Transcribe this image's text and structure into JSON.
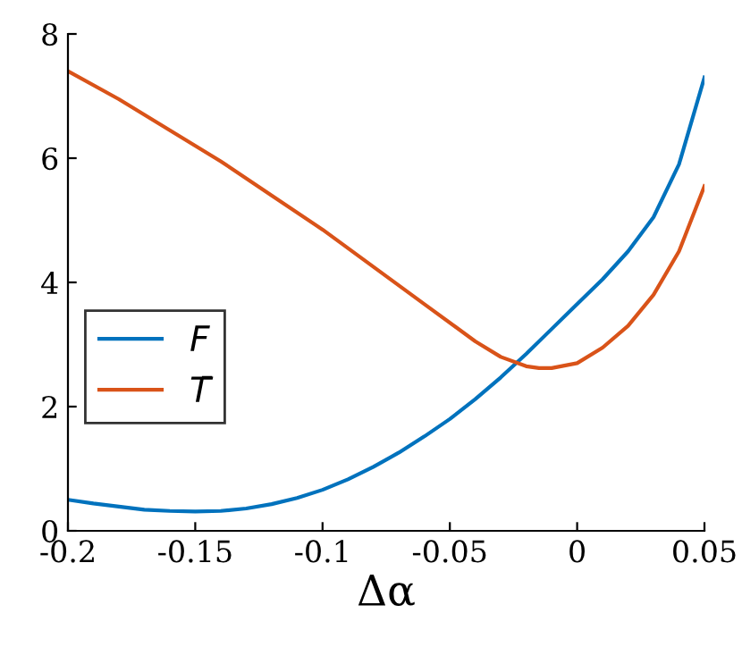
{
  "chart_data": {
    "type": "line",
    "xlabel": "Δα",
    "xlim": [
      -0.2,
      0.05
    ],
    "xticks": [
      -0.2,
      -0.15,
      -0.1,
      -0.05,
      0,
      0.05
    ],
    "ylim": [
      0,
      8
    ],
    "yticks": [
      0,
      2,
      4,
      6,
      8
    ],
    "legend": "left",
    "grid": false,
    "marker": "none",
    "line_style": "solid",
    "series": [
      {
        "name": "F",
        "color": "#0072bd",
        "x": [
          -0.2,
          -0.19,
          -0.18,
          -0.17,
          -0.16,
          -0.15,
          -0.14,
          -0.13,
          -0.12,
          -0.11,
          -0.1,
          -0.09,
          -0.08,
          -0.07,
          -0.06,
          -0.05,
          -0.04,
          -0.03,
          -0.02,
          -0.01,
          0,
          0.01,
          0.02,
          0.03,
          0.04,
          0.05
        ],
        "values": [
          0.5,
          0.44,
          0.39,
          0.34,
          0.32,
          0.31,
          0.32,
          0.36,
          0.43,
          0.53,
          0.66,
          0.83,
          1.03,
          1.26,
          1.52,
          1.8,
          2.12,
          2.47,
          2.85,
          3.25,
          3.65,
          4.05,
          4.5,
          5.05,
          5.9,
          7.3
        ]
      },
      {
        "name": "T̄",
        "color": "#d95319",
        "x": [
          -0.2,
          -0.18,
          -0.16,
          -0.14,
          -0.12,
          -0.1,
          -0.08,
          -0.06,
          -0.04,
          -0.03,
          -0.02,
          -0.015,
          -0.01,
          0,
          0.01,
          0.02,
          0.03,
          0.04,
          0.05
        ],
        "values": [
          7.4,
          6.95,
          6.45,
          5.95,
          5.4,
          4.85,
          4.25,
          3.65,
          3.05,
          2.8,
          2.65,
          2.62,
          2.62,
          2.7,
          2.95,
          3.3,
          3.8,
          4.5,
          5.55
        ]
      }
    ]
  }
}
